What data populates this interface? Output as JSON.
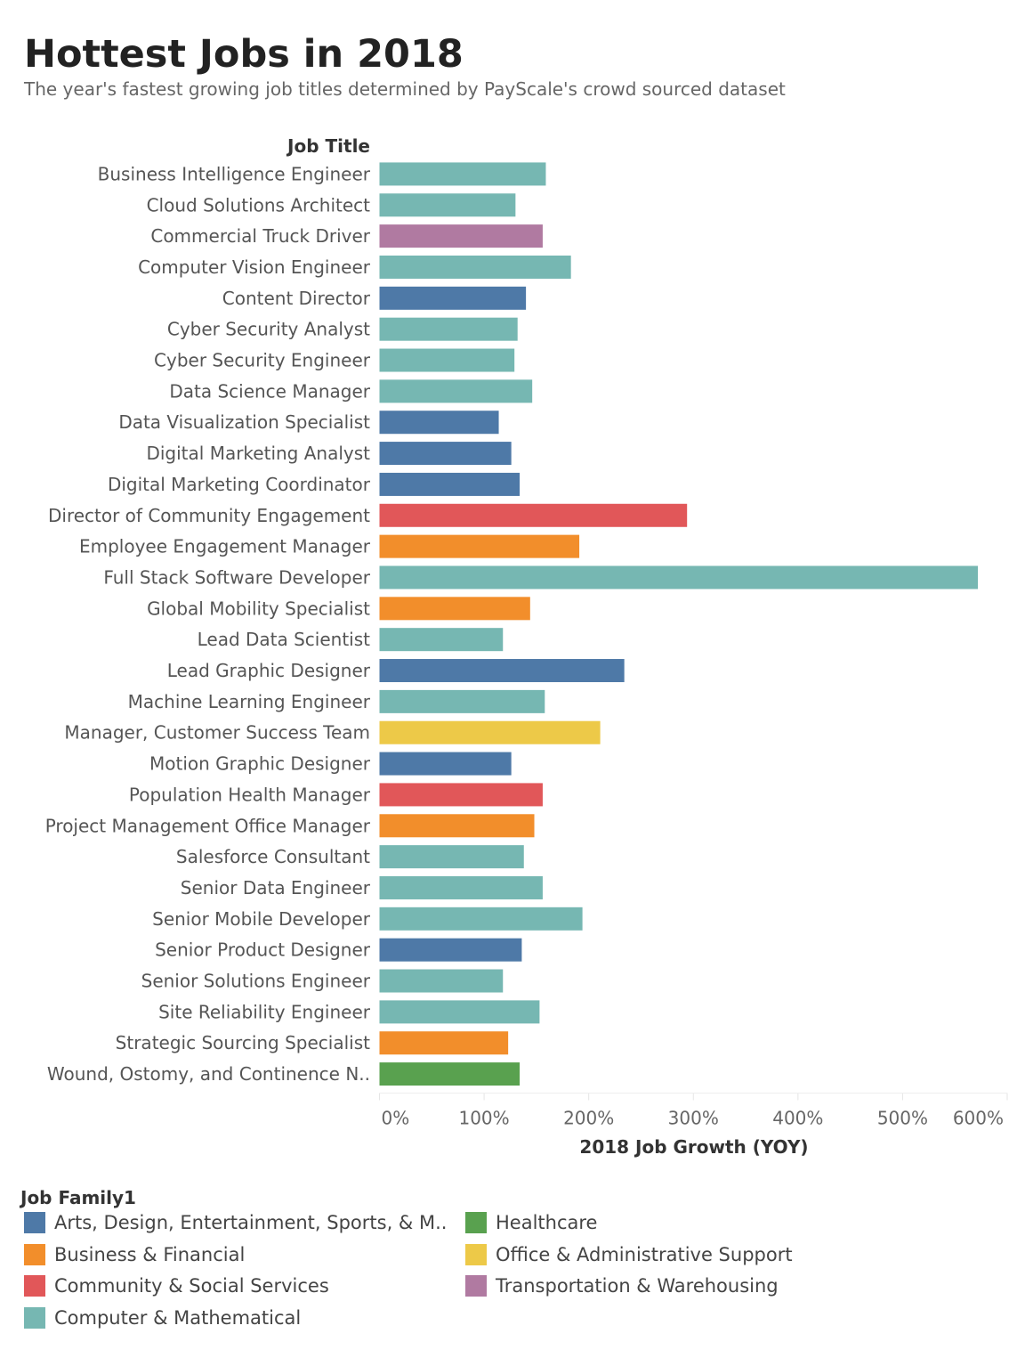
{
  "title": "Hottest Jobs in 2018",
  "subtitle": "The year's fastest growing job titles determined by PayScale's crowd sourced dataset",
  "chart_data": {
    "type": "bar",
    "orientation": "horizontal",
    "row_header": "Job Title",
    "xlabel": "2018 Job Growth (YOY)",
    "xlim": [
      0,
      600
    ],
    "xticks": [
      "0%",
      "100%",
      "200%",
      "300%",
      "400%",
      "500%",
      "600%"
    ],
    "xtick_values": [
      0,
      100,
      200,
      300,
      400,
      500,
      600
    ],
    "grid": true,
    "legend_title": "Job Family1",
    "legend_placement": "bottom",
    "families": [
      {
        "name": "Arts, Design, Entertainment, Sports, & M..",
        "color": "#4e79a7"
      },
      {
        "name": "Business & Financial",
        "color": "#f28e2b"
      },
      {
        "name": "Community & Social Services",
        "color": "#e15759"
      },
      {
        "name": "Computer & Mathematical",
        "color": "#76b7b2"
      },
      {
        "name": "Healthcare",
        "color": "#59a14f"
      },
      {
        "name": "Office & Administrative Support",
        "color": "#edc948"
      },
      {
        "name": "Transportation & Warehousing",
        "color": "#b07aa1"
      }
    ],
    "categories": [
      "Business Intelligence Engineer",
      "Cloud Solutions Architect",
      "Commercial Truck Driver",
      "Computer Vision Engineer",
      "Content Director",
      "Cyber Security Analyst",
      "Cyber Security Engineer",
      "Data Science Manager",
      "Data Visualization Specialist",
      "Digital Marketing Analyst",
      "Digital Marketing Coordinator",
      "Director of Community Engagement",
      "Employee Engagement Manager",
      "Full Stack Software Developer",
      "Global Mobility Specialist",
      "Lead Data Scientist",
      "Lead Graphic Designer",
      "Machine Learning Engineer",
      "Manager, Customer Success Team",
      "Motion Graphic Designer",
      "Population Health Manager",
      "Project Management Office Manager",
      "Salesforce Consultant",
      "Senior Data Engineer",
      "Senior Mobile Developer",
      "Senior Product Designer",
      "Senior Solutions Engineer",
      "Site Reliability Engineer",
      "Strategic Sourcing Specialist",
      "Wound, Ostomy, and Continence N.."
    ],
    "values": [
      159,
      130,
      156,
      183,
      140,
      132,
      129,
      146,
      114,
      126,
      134,
      294,
      191,
      572,
      144,
      118,
      234,
      158,
      211,
      126,
      156,
      148,
      138,
      156,
      194,
      136,
      118,
      153,
      123,
      134
    ],
    "family_index": [
      3,
      3,
      6,
      3,
      0,
      3,
      3,
      3,
      0,
      0,
      0,
      2,
      1,
      3,
      1,
      3,
      0,
      3,
      5,
      0,
      2,
      1,
      3,
      3,
      3,
      0,
      3,
      3,
      1,
      4
    ]
  }
}
